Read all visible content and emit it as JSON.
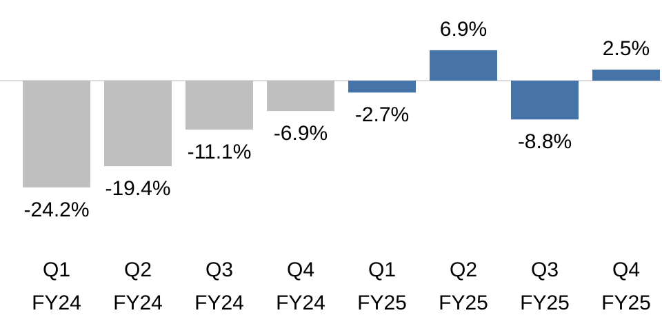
{
  "chart_data": {
    "type": "bar",
    "categories": [
      "Q1 FY24",
      "Q2 FY24",
      "Q3 FY24",
      "Q4 FY24",
      "Q1 FY25",
      "Q2 FY25",
      "Q3 FY25",
      "Q4 FY25"
    ],
    "values": [
      -24.2,
      -19.4,
      -11.1,
      -6.9,
      -2.7,
      6.9,
      -8.8,
      2.5
    ],
    "value_labels": [
      "-24.2%",
      "-19.4%",
      "-11.1%",
      "-6.9%",
      "-2.7%",
      "6.9%",
      "-8.8%",
      "2.5%"
    ],
    "colors": [
      "#bfbfbf",
      "#bfbfbf",
      "#bfbfbf",
      "#bfbfbf",
      "#4674a8",
      "#4674a8",
      "#4674a8",
      "#4674a8"
    ]
  }
}
